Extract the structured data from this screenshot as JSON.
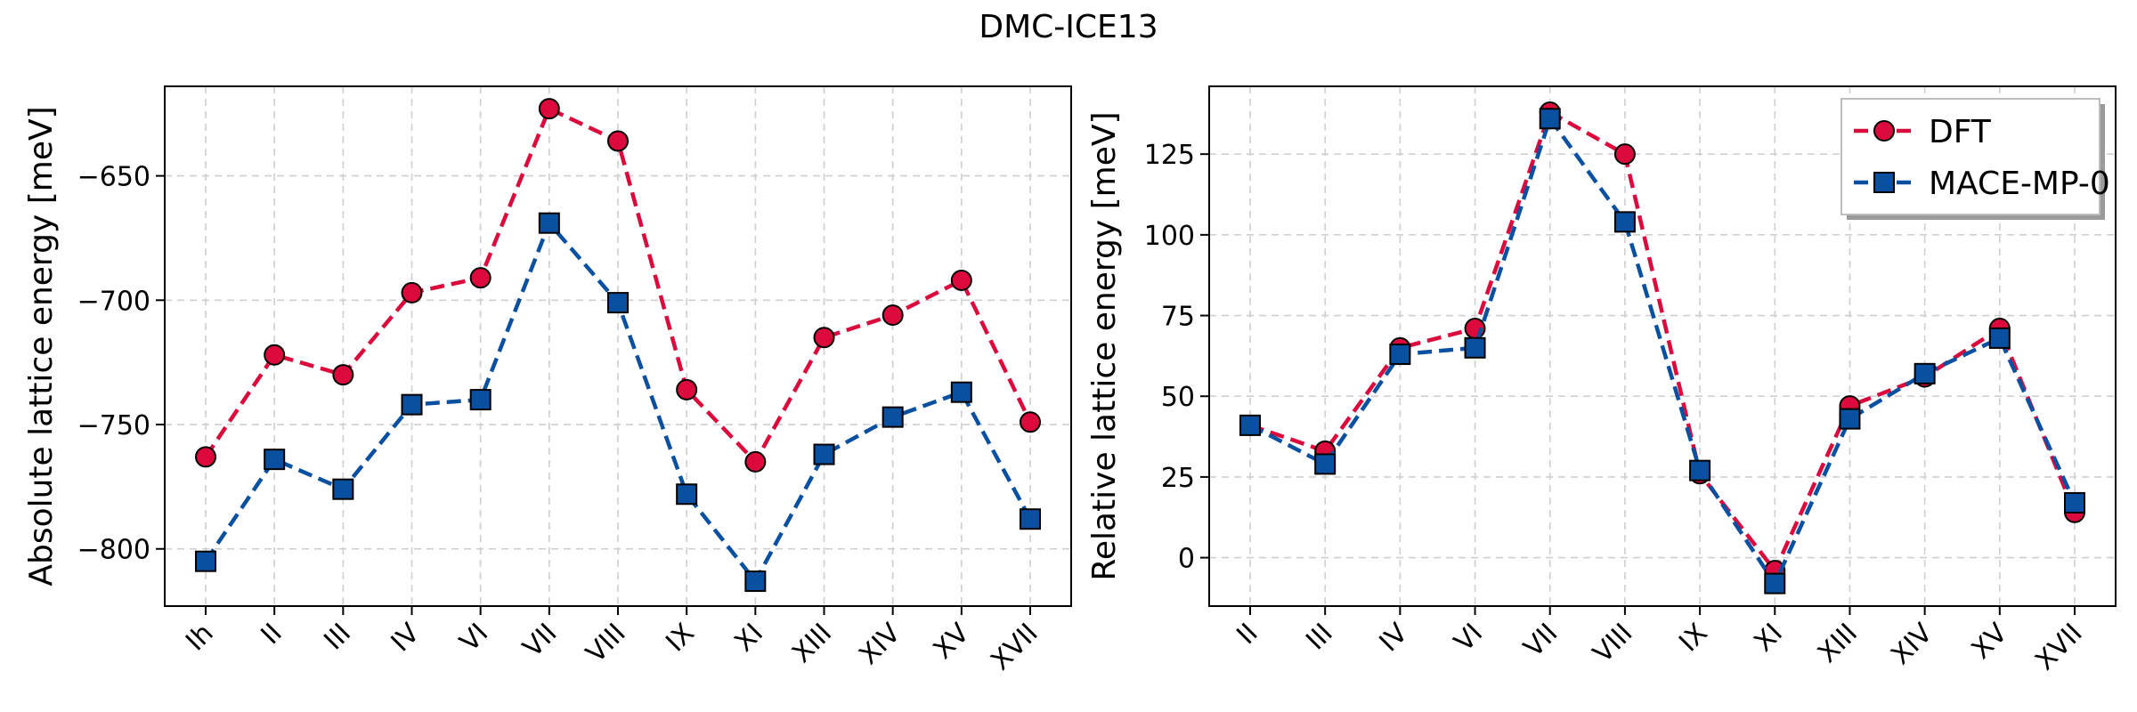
{
  "title": "DMC-ICE13",
  "colors": {
    "DFT": "#dc0a3c",
    "MACE-MP-0": "#0a50a0",
    "grid": "#cfcfcf"
  },
  "chart_data": [
    {
      "type": "line",
      "ylabel": "Absolute lattice energy [meV]",
      "xlabel": "",
      "categories": [
        "Ih",
        "II",
        "III",
        "IV",
        "VI",
        "VII",
        "VIII",
        "IX",
        "XI",
        "XIII",
        "XIV",
        "XV",
        "XVII"
      ],
      "yticks": [
        -650,
        -700,
        -750,
        -800
      ],
      "ylim": [
        -823,
        -614
      ],
      "grid": true,
      "legend": null,
      "series": [
        {
          "name": "DFT",
          "marker": "circle",
          "values": [
            -763,
            -722,
            -730,
            -697,
            -691,
            -623,
            -636,
            -736,
            -765,
            -715,
            -706,
            -692,
            -749
          ]
        },
        {
          "name": "MACE-MP-0",
          "marker": "square",
          "values": [
            -805,
            -764,
            -776,
            -742,
            -740,
            -669,
            -701,
            -778,
            -813,
            -762,
            -747,
            -737,
            -788
          ]
        }
      ]
    },
    {
      "type": "line",
      "ylabel": "Relative lattice energy [meV]",
      "xlabel": "",
      "categories": [
        "II",
        "III",
        "IV",
        "VI",
        "VII",
        "VIII",
        "IX",
        "XI",
        "XIII",
        "XIV",
        "XV",
        "XVII"
      ],
      "yticks": [
        0,
        25,
        50,
        75,
        100,
        125
      ],
      "ylim": [
        -15,
        146
      ],
      "grid": true,
      "legend": "top-right",
      "series": [
        {
          "name": "DFT",
          "marker": "circle",
          "values": [
            41,
            33,
            65,
            71,
            138,
            125,
            26,
            -4,
            47,
            56,
            71,
            14
          ]
        },
        {
          "name": "MACE-MP-0",
          "marker": "square",
          "values": [
            41,
            29,
            63,
            65,
            136,
            104,
            27,
            -8,
            43,
            57,
            68,
            17
          ]
        }
      ]
    }
  ]
}
